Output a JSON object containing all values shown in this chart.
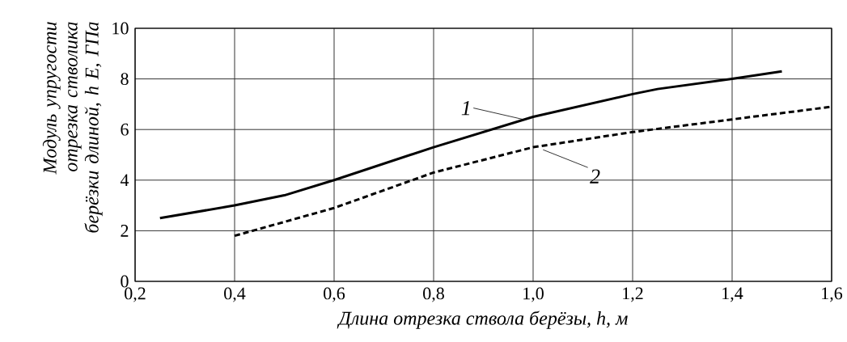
{
  "chart_data": {
    "type": "line",
    "xlabel": "Длина отрезка ствола берёзы, *h*, *м*",
    "ylabel": "Модуль упругости отрезка стволика берёзки длиной, *h* *E*, *ГПа*",
    "xlim": [
      0.2,
      1.6
    ],
    "ylim": [
      0,
      10
    ],
    "xticks": [
      {
        "value": 0.2,
        "label": "0,2"
      },
      {
        "value": 0.4,
        "label": "0,4"
      },
      {
        "value": 0.6,
        "label": "0,6"
      },
      {
        "value": 0.8,
        "label": "0,8"
      },
      {
        "value": 1.0,
        "label": "1,0"
      },
      {
        "value": 1.2,
        "label": "1,2"
      },
      {
        "value": 1.4,
        "label": "1,4"
      },
      {
        "value": 1.6,
        "label": "1,6"
      }
    ],
    "yticks": [
      0,
      2,
      4,
      6,
      8,
      10
    ],
    "grid": true,
    "series": [
      {
        "color": "#000000",
        "line_style": "solid",
        "x": [
          0.25,
          0.4,
          0.5,
          0.6,
          0.8,
          1.0,
          1.2,
          1.25,
          1.4,
          1.5
        ],
        "values": [
          2.5,
          3.0,
          3.4,
          4.0,
          5.3,
          6.5,
          7.4,
          7.6,
          8.0,
          8.3
        ]
      },
      {
        "color": "#000000",
        "line_style": "dashed",
        "x": [
          0.4,
          0.6,
          0.8,
          1.0,
          1.2,
          1.4,
          1.6
        ],
        "values": [
          1.8,
          2.9,
          4.3,
          5.3,
          5.9,
          6.4,
          6.9
        ]
      }
    ],
    "annotations": [
      {
        "text": "1",
        "x": 0.98,
        "y": 6.4
      },
      {
        "text": "2",
        "x": 1.02,
        "y": 5.2
      }
    ]
  }
}
